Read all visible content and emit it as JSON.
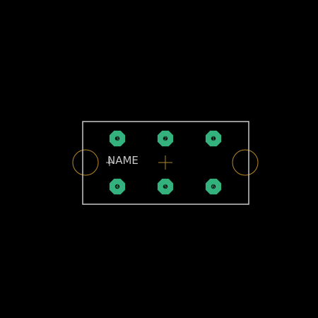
{
  "footprint": {
    "name_label": "NAME",
    "colors": {
      "background": "#000000",
      "silkscreen": "#c8c8c8",
      "pad": "#34b27d",
      "pad_number": "#0b3a24",
      "mount_ring": "#b88a24",
      "origin": "#a88a24"
    },
    "pads": [
      {
        "number": "3",
        "row": "top",
        "column": 0
      },
      {
        "number": "2",
        "row": "top",
        "column": 1
      },
      {
        "number": "1",
        "row": "top",
        "column": 2
      },
      {
        "number": "4",
        "row": "bottom",
        "column": 0
      },
      {
        "number": "5",
        "row": "bottom",
        "column": 1
      },
      {
        "number": "6",
        "row": "bottom",
        "column": 2
      }
    ]
  }
}
